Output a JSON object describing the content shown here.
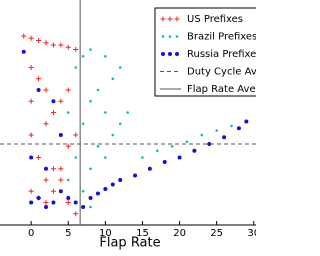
{
  "chart_data": {
    "type": "scatter",
    "x_label": "Flap Rate",
    "xlim": [
      -4.2,
      30.3
    ],
    "xticks": [
      0,
      5,
      10,
      15,
      20,
      25,
      30
    ],
    "ylim": [
      0,
      1
    ],
    "legend": "upper right",
    "series": [
      {
        "name": "US Prefixes",
        "color": "#ff2020",
        "marker": "plus",
        "x": [
          -1,
          0,
          0,
          0,
          0,
          1,
          1,
          1,
          2,
          2,
          2,
          2,
          3,
          3,
          3,
          4,
          4,
          4,
          5,
          5,
          5,
          6,
          6,
          6,
          0,
          1,
          2,
          3,
          4,
          5
        ],
        "values": [
          0.84,
          0.83,
          0.7,
          0.55,
          0.4,
          0.82,
          0.65,
          0.3,
          0.81,
          0.6,
          0.45,
          0.2,
          0.8,
          0.5,
          0.15,
          0.8,
          0.55,
          0.25,
          0.79,
          0.6,
          0.1,
          0.78,
          0.4,
          0.05,
          0.15,
          0.12,
          0.1,
          0.25,
          0.2,
          0.35
        ]
      },
      {
        "name": "Brazil Prefixes",
        "color": "#00bfbf",
        "marker": "dot",
        "x": [
          5,
          5,
          6,
          6,
          7,
          7,
          7,
          8,
          8,
          8,
          9,
          9,
          10,
          10,
          10,
          11,
          11,
          12,
          12,
          13,
          15,
          17,
          19,
          21,
          23,
          25,
          27,
          29,
          6,
          8
        ],
        "values": [
          0.5,
          0.2,
          0.7,
          0.3,
          0.75,
          0.45,
          0.15,
          0.78,
          0.55,
          0.25,
          0.6,
          0.35,
          0.75,
          0.5,
          0.3,
          0.65,
          0.4,
          0.7,
          0.45,
          0.5,
          0.3,
          0.33,
          0.35,
          0.37,
          0.4,
          0.42,
          0.44,
          0.46,
          0.1,
          0.08
        ]
      },
      {
        "name": "Russia Prefixes",
        "color": "#1010e0",
        "marker": "circle",
        "x": [
          -1,
          0,
          1,
          2,
          3,
          4,
          5,
          6,
          7,
          8,
          9,
          10,
          11,
          12,
          14,
          16,
          18,
          20,
          22,
          24,
          26,
          28,
          29,
          0,
          2,
          4,
          1,
          3
        ],
        "values": [
          0.77,
          0.1,
          0.12,
          0.08,
          0.1,
          0.15,
          0.12,
          0.1,
          0.08,
          0.12,
          0.14,
          0.16,
          0.18,
          0.2,
          0.22,
          0.25,
          0.28,
          0.3,
          0.33,
          0.36,
          0.39,
          0.43,
          0.46,
          0.3,
          0.25,
          0.4,
          0.6,
          0.55
        ]
      }
    ],
    "reference_lines": [
      {
        "name": "Duty Cycle Ave",
        "orientation": "horizontal",
        "value": 0.36,
        "color": "#555555",
        "style": "dashed"
      },
      {
        "name": "Flap Rate Ave",
        "orientation": "vertical",
        "value": 6.6,
        "color": "#555555",
        "style": "solid"
      }
    ]
  }
}
